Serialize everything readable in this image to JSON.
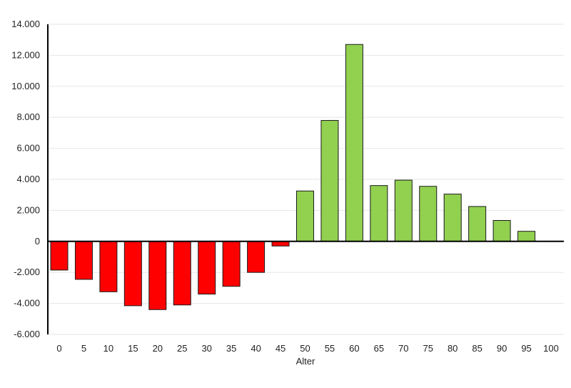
{
  "chart_data": {
    "type": "bar",
    "xlabel": "Alter",
    "ylabel": "",
    "title": "",
    "ylim": [
      -6000,
      14000
    ],
    "yticks": [
      -6000,
      -4000,
      -2000,
      0,
      2000,
      4000,
      6000,
      8000,
      10000,
      12000,
      14000
    ],
    "ytick_labels": [
      "-6.000",
      "-4.000",
      "-2.000",
      "0",
      "2.000",
      "4.000",
      "6.000",
      "8.000",
      "10.000",
      "12.000",
      "14.000"
    ],
    "categories": [
      "0",
      "5",
      "10",
      "15",
      "20",
      "25",
      "30",
      "35",
      "40",
      "45",
      "50",
      "55",
      "60",
      "65",
      "70",
      "75",
      "80",
      "85",
      "90",
      "95",
      "100"
    ],
    "values": [
      -1850,
      -2450,
      -3250,
      -4150,
      -4400,
      -4100,
      -3400,
      -2900,
      -2000,
      -300,
      3250,
      7800,
      12700,
      3600,
      3950,
      3550,
      3050,
      2250,
      1350,
      650,
      null
    ],
    "colors": {
      "negative": "#ff0000",
      "positive": "#92d050",
      "border": "#1a1a1a",
      "grid": "#e6e6e6",
      "axis": "#000000"
    },
    "grid": true,
    "legend": "none"
  }
}
